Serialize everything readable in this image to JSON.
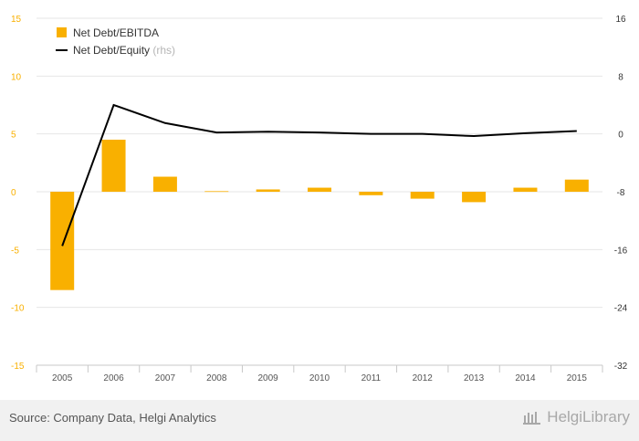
{
  "chart_data": {
    "type": "bar+line",
    "categories": [
      "2005",
      "2006",
      "2007",
      "2008",
      "2009",
      "2010",
      "2011",
      "2012",
      "2013",
      "2014",
      "2015"
    ],
    "series": [
      {
        "name": "Net Debt/EBITDA",
        "type": "bar",
        "axis": "left",
        "color": "#f9b000",
        "values": [
          -8.5,
          4.5,
          1.3,
          0.05,
          0.2,
          0.35,
          -0.3,
          -0.6,
          -0.9,
          0.35,
          1.05
        ]
      },
      {
        "name": "Net Debt/Equity",
        "axis_suffix": "(rhs)",
        "type": "line",
        "axis": "right",
        "color": "#000000",
        "values": [
          -15.5,
          4.0,
          1.5,
          0.2,
          0.3,
          0.2,
          0.0,
          0.0,
          -0.3,
          0.1,
          0.4
        ]
      }
    ],
    "y_left": {
      "ticks": [
        "15",
        "10",
        "5",
        "0",
        "-5",
        "-10",
        "-15"
      ],
      "ylim": [
        -15,
        15
      ]
    },
    "y_right": {
      "ticks": [
        "16",
        "8",
        "0",
        "-8",
        "-16",
        "-24",
        "-32"
      ],
      "ylim": [
        -32,
        16
      ]
    },
    "legend_placement": "top-left",
    "grid": true
  },
  "footer": {
    "source": "Source: Company Data, Helgi Analytics",
    "brand": "HelgiLibrary"
  }
}
